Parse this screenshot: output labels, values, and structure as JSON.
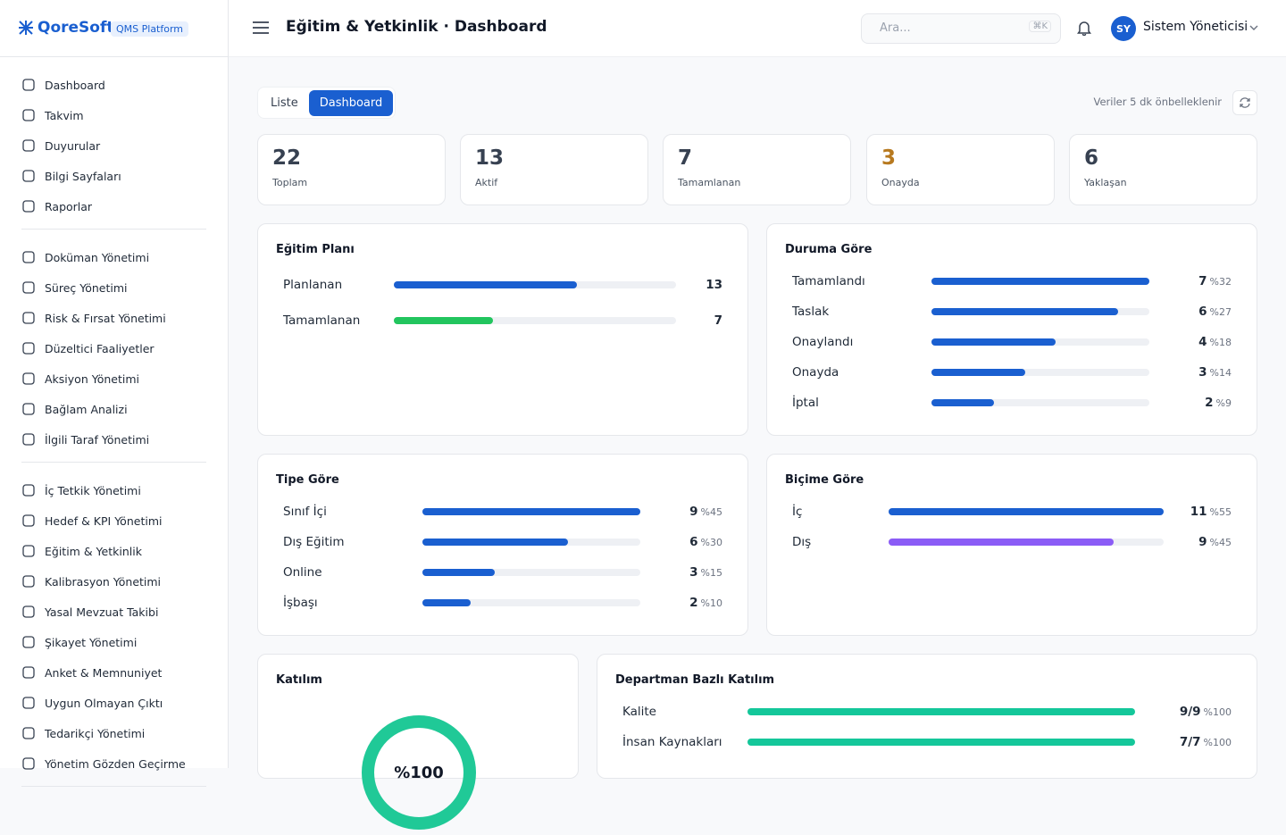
{
  "brand": {
    "logo": "QoreSoft",
    "badge": "QMS Platform"
  },
  "header": {
    "title": "Eğitim & Yetkinlik · Dashboard",
    "search_placeholder": "Ara...",
    "shortcut": "⌘K",
    "user_initials": "SY",
    "user_name": "Sistem Yöneticisi"
  },
  "sidebar": {
    "groups": [
      [
        "Dashboard",
        "Takvim",
        "Duyurular",
        "Bilgi Sayfaları",
        "Raporlar"
      ],
      [
        "Doküman Yönetimi",
        "Süreç Yönetimi",
        "Risk & Fırsat Yönetimi",
        "Düzeltici Faaliyetler",
        "Aksiyon Yönetimi",
        "Bağlam Analizi",
        "İlgili Taraf Yönetimi"
      ],
      [
        "İç Tetkik Yönetimi",
        "Hedef & KPI Yönetimi",
        "Eğitim & Yetkinlik",
        "Kalibrasyon Yönetimi",
        "Yasal Mevzuat Takibi",
        "Şikayet Yönetimi",
        "Anket & Memnuniyet",
        "Uygun Olmayan Çıktı",
        "Tedarikçi Yönetimi",
        "Yönetim Gözden Geçirme"
      ]
    ]
  },
  "tabs": {
    "items": [
      "Liste",
      "Dashboard"
    ],
    "active": 1
  },
  "cache_note": "Veriler 5 dk önbelleklenir",
  "stats": [
    {
      "value": 22,
      "label": "Toplam",
      "color": "#374151"
    },
    {
      "value": 13,
      "label": "Aktif",
      "color": "#374151"
    },
    {
      "value": 7,
      "label": "Tamamlanan",
      "color": "#374151"
    },
    {
      "value": 3,
      "label": "Onayda",
      "color": "#b7791f"
    },
    {
      "value": 6,
      "label": "Yaklaşan",
      "color": "#374151"
    }
  ],
  "panels": {
    "plan": {
      "title": "Eğitim Planı",
      "rows": [
        {
          "label": "Planlanan",
          "value": 13,
          "color": "#1a5fd0"
        },
        {
          "label": "Tamamlanan",
          "value": 7,
          "color": "#22c55e"
        }
      ]
    },
    "status": {
      "title": "Duruma Göre",
      "rows": [
        {
          "label": "Tamamlandı",
          "value": 7,
          "percent": "%32",
          "color": "#1a5fd0"
        },
        {
          "label": "Taslak",
          "value": 6,
          "percent": "%27",
          "color": "#1a5fd0"
        },
        {
          "label": "Onaylandı",
          "value": 4,
          "percent": "%18",
          "color": "#1a5fd0"
        },
        {
          "label": "Onayda",
          "value": 3,
          "percent": "%14",
          "color": "#1a5fd0"
        },
        {
          "label": "İptal",
          "value": 2,
          "percent": "%9",
          "color": "#1a5fd0"
        }
      ]
    },
    "type": {
      "title": "Tipe Göre",
      "rows": [
        {
          "label": "Sınıf İçi",
          "value": 9,
          "percent": "%45",
          "color": "#1a5fd0"
        },
        {
          "label": "Dış Eğitim",
          "value": 6,
          "percent": "%30",
          "color": "#1a5fd0"
        },
        {
          "label": "Online",
          "value": 3,
          "percent": "%15",
          "color": "#1a5fd0"
        },
        {
          "label": "İşbaşı",
          "value": 2,
          "percent": "%10",
          "color": "#1a5fd0"
        }
      ]
    },
    "format": {
      "title": "Biçime Göre",
      "rows": [
        {
          "label": "İç",
          "value": 11,
          "percent": "%55",
          "color": "#1a5fd0"
        },
        {
          "label": "Dış",
          "value": 9,
          "percent": "%45",
          "color": "#8b5cf6"
        }
      ]
    },
    "attendance": {
      "title": "Katılım",
      "value": 100,
      "center_label": "%100",
      "color": "#20c997"
    },
    "department": {
      "title": "Departman Bazlı Katılım",
      "rows": [
        {
          "label": "Kalite",
          "ratio": "9/9",
          "value": 100,
          "percent": "%100",
          "color": "#14c79a"
        },
        {
          "label": "İnsan Kaynakları",
          "ratio": "7/7",
          "value": 100,
          "percent": "%100",
          "color": "#14c79a"
        }
      ]
    }
  }
}
